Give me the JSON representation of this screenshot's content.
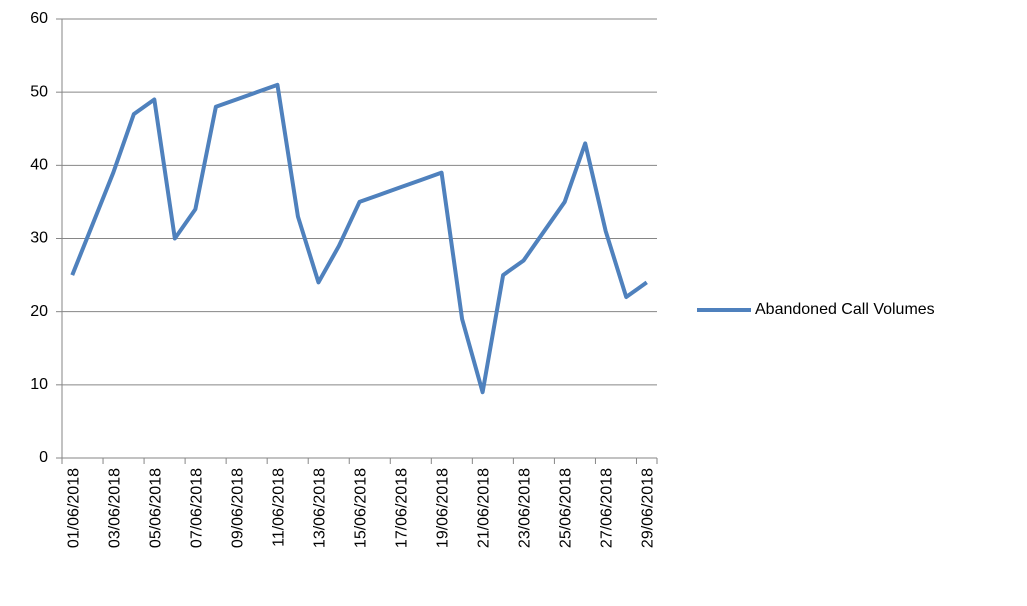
{
  "chart_data": {
    "type": "line",
    "categories": [
      "01/06/2018",
      null,
      "03/06/2018",
      null,
      "05/06/2018",
      null,
      "07/06/2018",
      null,
      "09/06/2018",
      null,
      "11/06/2018",
      null,
      "13/06/2018",
      null,
      "15/06/2018",
      null,
      "17/06/2018",
      null,
      "19/06/2018",
      null,
      "21/06/2018",
      null,
      "23/06/2018",
      null,
      "25/06/2018",
      null,
      "27/06/2018",
      null,
      "29/06/2018"
    ],
    "series": [
      {
        "name": "Abandoned Call Volumes",
        "color": "#4f81bd",
        "values": [
          25,
          32,
          39,
          47,
          49,
          30,
          34,
          48,
          49,
          50,
          51,
          33,
          24,
          29,
          35,
          36,
          37,
          38,
          39,
          19,
          9,
          25,
          27,
          31,
          35,
          43,
          31,
          22,
          24
        ]
      }
    ],
    "ylim": [
      0,
      60
    ],
    "yticks": [
      0,
      10,
      20,
      30,
      40,
      50,
      60
    ],
    "grid": true,
    "legend": "right"
  }
}
